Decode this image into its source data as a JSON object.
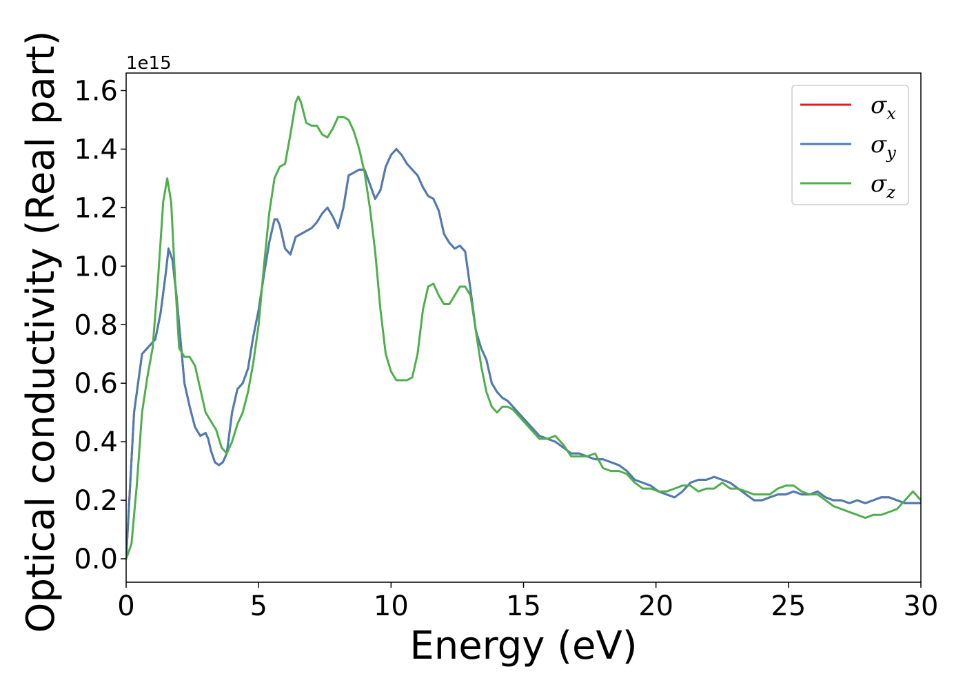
{
  "chart_data": {
    "type": "line",
    "xlabel": "Energy (eV)",
    "ylabel": "Optical conductivity (Real part)",
    "y_offset_label": "1e15",
    "xlim": [
      0,
      30
    ],
    "ylim": [
      -0.08,
      1.66
    ],
    "x_ticks": [
      0,
      5,
      10,
      15,
      20,
      25,
      30
    ],
    "x_tick_labels": [
      "0",
      "5",
      "10",
      "15",
      "20",
      "25",
      "30"
    ],
    "y_ticks": [
      0.0,
      0.2,
      0.4,
      0.6,
      0.8,
      1.0,
      1.2,
      1.4,
      1.6
    ],
    "y_tick_labels": [
      "0.0",
      "0.2",
      "0.4",
      "0.6",
      "0.8",
      "1.0",
      "1.2",
      "1.4",
      "1.6"
    ],
    "grid": false,
    "legend_position": "top-right",
    "series": [
      {
        "name": "σ",
        "subscript": "x",
        "color": "#e41a1c",
        "x": [
          0,
          0.3,
          0.6,
          0.9,
          1.1,
          1.3,
          1.5,
          1.6,
          1.75,
          1.9,
          2.05,
          2.2,
          2.4,
          2.6,
          2.8,
          3.0,
          3.1,
          3.2,
          3.35,
          3.5,
          3.65,
          3.8,
          4.0,
          4.2,
          4.4,
          4.6,
          4.8,
          5.0,
          5.2,
          5.4,
          5.6,
          5.7,
          5.8,
          6.0,
          6.2,
          6.4,
          6.6,
          6.8,
          7.0,
          7.2,
          7.4,
          7.6,
          7.8,
          8.0,
          8.2,
          8.4,
          8.6,
          8.8,
          9.0,
          9.2,
          9.4,
          9.6,
          9.8,
          10.0,
          10.2,
          10.4,
          10.6,
          10.8,
          11.0,
          11.2,
          11.4,
          11.6,
          11.8,
          12.0,
          12.2,
          12.4,
          12.6,
          12.8,
          13.0,
          13.2,
          13.4,
          13.6,
          13.8,
          14.0,
          14.2,
          14.4,
          14.6,
          14.8,
          15.0,
          15.3,
          15.6,
          15.9,
          16.2,
          16.5,
          16.8,
          17.1,
          17.4,
          17.7,
          18.0,
          18.3,
          18.6,
          18.9,
          19.2,
          19.5,
          19.8,
          20.1,
          20.4,
          20.7,
          21.0,
          21.3,
          21.6,
          21.9,
          22.2,
          22.5,
          22.8,
          23.1,
          23.4,
          23.7,
          24.0,
          24.3,
          24.6,
          24.9,
          25.2,
          25.5,
          25.8,
          26.1,
          26.4,
          26.7,
          27.0,
          27.3,
          27.6,
          27.9,
          28.2,
          28.5,
          28.8,
          29.1,
          29.4,
          29.7,
          30.0
        ],
        "y": [
          0.0,
          0.5,
          0.7,
          0.73,
          0.75,
          0.84,
          0.98,
          1.06,
          1.02,
          0.9,
          0.75,
          0.6,
          0.52,
          0.45,
          0.42,
          0.43,
          0.41,
          0.37,
          0.33,
          0.32,
          0.33,
          0.36,
          0.5,
          0.58,
          0.6,
          0.65,
          0.76,
          0.85,
          0.97,
          1.08,
          1.16,
          1.16,
          1.14,
          1.06,
          1.04,
          1.1,
          1.11,
          1.12,
          1.13,
          1.15,
          1.18,
          1.2,
          1.17,
          1.13,
          1.2,
          1.31,
          1.32,
          1.33,
          1.33,
          1.28,
          1.23,
          1.26,
          1.34,
          1.38,
          1.4,
          1.38,
          1.35,
          1.33,
          1.31,
          1.27,
          1.24,
          1.23,
          1.19,
          1.11,
          1.08,
          1.06,
          1.07,
          1.05,
          0.92,
          0.78,
          0.72,
          0.68,
          0.6,
          0.57,
          0.55,
          0.54,
          0.52,
          0.5,
          0.48,
          0.45,
          0.42,
          0.41,
          0.4,
          0.38,
          0.36,
          0.36,
          0.35,
          0.34,
          0.34,
          0.33,
          0.32,
          0.3,
          0.27,
          0.26,
          0.25,
          0.23,
          0.22,
          0.21,
          0.23,
          0.26,
          0.27,
          0.27,
          0.28,
          0.27,
          0.26,
          0.24,
          0.22,
          0.2,
          0.2,
          0.21,
          0.22,
          0.22,
          0.23,
          0.22,
          0.22,
          0.23,
          0.21,
          0.2,
          0.2,
          0.19,
          0.2,
          0.19,
          0.2,
          0.21,
          0.21,
          0.2,
          0.19,
          0.19,
          0.19
        ]
      },
      {
        "name": "σ",
        "subscript": "y",
        "color": "#4a7cb5",
        "x": [
          0,
          0.3,
          0.6,
          0.9,
          1.1,
          1.3,
          1.5,
          1.6,
          1.75,
          1.9,
          2.05,
          2.2,
          2.4,
          2.6,
          2.8,
          3.0,
          3.1,
          3.2,
          3.35,
          3.5,
          3.65,
          3.8,
          4.0,
          4.2,
          4.4,
          4.6,
          4.8,
          5.0,
          5.2,
          5.4,
          5.6,
          5.7,
          5.8,
          6.0,
          6.2,
          6.4,
          6.6,
          6.8,
          7.0,
          7.2,
          7.4,
          7.6,
          7.8,
          8.0,
          8.2,
          8.4,
          8.6,
          8.8,
          9.0,
          9.2,
          9.4,
          9.6,
          9.8,
          10.0,
          10.2,
          10.4,
          10.6,
          10.8,
          11.0,
          11.2,
          11.4,
          11.6,
          11.8,
          12.0,
          12.2,
          12.4,
          12.6,
          12.8,
          13.0,
          13.2,
          13.4,
          13.6,
          13.8,
          14.0,
          14.2,
          14.4,
          14.6,
          14.8,
          15.0,
          15.3,
          15.6,
          15.9,
          16.2,
          16.5,
          16.8,
          17.1,
          17.4,
          17.7,
          18.0,
          18.3,
          18.6,
          18.9,
          19.2,
          19.5,
          19.8,
          20.1,
          20.4,
          20.7,
          21.0,
          21.3,
          21.6,
          21.9,
          22.2,
          22.5,
          22.8,
          23.1,
          23.4,
          23.7,
          24.0,
          24.3,
          24.6,
          24.9,
          25.2,
          25.5,
          25.8,
          26.1,
          26.4,
          26.7,
          27.0,
          27.3,
          27.6,
          27.9,
          28.2,
          28.5,
          28.8,
          29.1,
          29.4,
          29.7,
          30.0
        ],
        "y": [
          0.0,
          0.5,
          0.7,
          0.73,
          0.75,
          0.84,
          0.98,
          1.06,
          1.02,
          0.9,
          0.75,
          0.6,
          0.52,
          0.45,
          0.42,
          0.43,
          0.41,
          0.37,
          0.33,
          0.32,
          0.33,
          0.36,
          0.5,
          0.58,
          0.6,
          0.65,
          0.76,
          0.85,
          0.97,
          1.08,
          1.16,
          1.16,
          1.14,
          1.06,
          1.04,
          1.1,
          1.11,
          1.12,
          1.13,
          1.15,
          1.18,
          1.2,
          1.17,
          1.13,
          1.2,
          1.31,
          1.32,
          1.33,
          1.33,
          1.28,
          1.23,
          1.26,
          1.34,
          1.38,
          1.4,
          1.38,
          1.35,
          1.33,
          1.31,
          1.27,
          1.24,
          1.23,
          1.19,
          1.11,
          1.08,
          1.06,
          1.07,
          1.05,
          0.92,
          0.78,
          0.72,
          0.68,
          0.6,
          0.57,
          0.55,
          0.54,
          0.52,
          0.5,
          0.48,
          0.45,
          0.42,
          0.41,
          0.4,
          0.38,
          0.36,
          0.36,
          0.35,
          0.34,
          0.34,
          0.33,
          0.32,
          0.3,
          0.27,
          0.26,
          0.25,
          0.23,
          0.22,
          0.21,
          0.23,
          0.26,
          0.27,
          0.27,
          0.28,
          0.27,
          0.26,
          0.24,
          0.22,
          0.2,
          0.2,
          0.21,
          0.22,
          0.22,
          0.23,
          0.22,
          0.22,
          0.23,
          0.21,
          0.2,
          0.2,
          0.19,
          0.2,
          0.19,
          0.2,
          0.21,
          0.21,
          0.2,
          0.19,
          0.19,
          0.19
        ]
      },
      {
        "name": "σ",
        "subscript": "z",
        "color": "#4daf4a",
        "x": [
          0,
          0.2,
          0.4,
          0.6,
          0.8,
          1.0,
          1.2,
          1.4,
          1.55,
          1.7,
          1.85,
          2.0,
          2.2,
          2.4,
          2.6,
          2.8,
          3.0,
          3.2,
          3.4,
          3.6,
          3.8,
          4.0,
          4.2,
          4.4,
          4.6,
          4.8,
          5.0,
          5.2,
          5.4,
          5.6,
          5.8,
          6.0,
          6.2,
          6.4,
          6.5,
          6.6,
          6.8,
          7.0,
          7.2,
          7.4,
          7.6,
          7.8,
          8.0,
          8.2,
          8.4,
          8.6,
          8.8,
          9.0,
          9.2,
          9.4,
          9.6,
          9.8,
          10.0,
          10.2,
          10.4,
          10.6,
          10.8,
          11.0,
          11.2,
          11.4,
          11.6,
          11.8,
          12.0,
          12.2,
          12.4,
          12.6,
          12.8,
          13.0,
          13.2,
          13.4,
          13.6,
          13.8,
          14.0,
          14.2,
          14.4,
          14.6,
          14.8,
          15.0,
          15.3,
          15.6,
          15.9,
          16.2,
          16.5,
          16.8,
          17.1,
          17.4,
          17.7,
          18.0,
          18.3,
          18.6,
          18.9,
          19.2,
          19.5,
          19.8,
          20.1,
          20.4,
          20.7,
          21.0,
          21.3,
          21.6,
          21.9,
          22.2,
          22.5,
          22.8,
          23.1,
          23.4,
          23.7,
          24.0,
          24.3,
          24.6,
          24.9,
          25.2,
          25.5,
          25.8,
          26.1,
          26.4,
          26.7,
          27.0,
          27.3,
          27.6,
          27.9,
          28.2,
          28.5,
          28.8,
          29.1,
          29.4,
          29.7,
          30.0
        ],
        "y": [
          0.0,
          0.05,
          0.25,
          0.5,
          0.62,
          0.72,
          0.95,
          1.22,
          1.3,
          1.22,
          0.95,
          0.72,
          0.69,
          0.69,
          0.66,
          0.58,
          0.5,
          0.47,
          0.44,
          0.38,
          0.36,
          0.4,
          0.46,
          0.5,
          0.57,
          0.67,
          0.8,
          1.0,
          1.18,
          1.3,
          1.34,
          1.35,
          1.45,
          1.56,
          1.58,
          1.56,
          1.49,
          1.48,
          1.48,
          1.45,
          1.44,
          1.47,
          1.51,
          1.51,
          1.5,
          1.46,
          1.4,
          1.32,
          1.2,
          1.05,
          0.85,
          0.7,
          0.64,
          0.61,
          0.61,
          0.61,
          0.62,
          0.7,
          0.85,
          0.93,
          0.94,
          0.9,
          0.87,
          0.87,
          0.9,
          0.93,
          0.93,
          0.9,
          0.78,
          0.66,
          0.57,
          0.52,
          0.5,
          0.52,
          0.52,
          0.51,
          0.49,
          0.47,
          0.44,
          0.41,
          0.41,
          0.42,
          0.39,
          0.35,
          0.35,
          0.35,
          0.36,
          0.31,
          0.3,
          0.3,
          0.29,
          0.26,
          0.24,
          0.24,
          0.23,
          0.23,
          0.24,
          0.25,
          0.25,
          0.23,
          0.24,
          0.24,
          0.26,
          0.24,
          0.24,
          0.23,
          0.22,
          0.22,
          0.22,
          0.24,
          0.25,
          0.25,
          0.23,
          0.22,
          0.22,
          0.2,
          0.18,
          0.17,
          0.16,
          0.15,
          0.14,
          0.15,
          0.15,
          0.16,
          0.17,
          0.2,
          0.23,
          0.2
        ]
      }
    ]
  }
}
